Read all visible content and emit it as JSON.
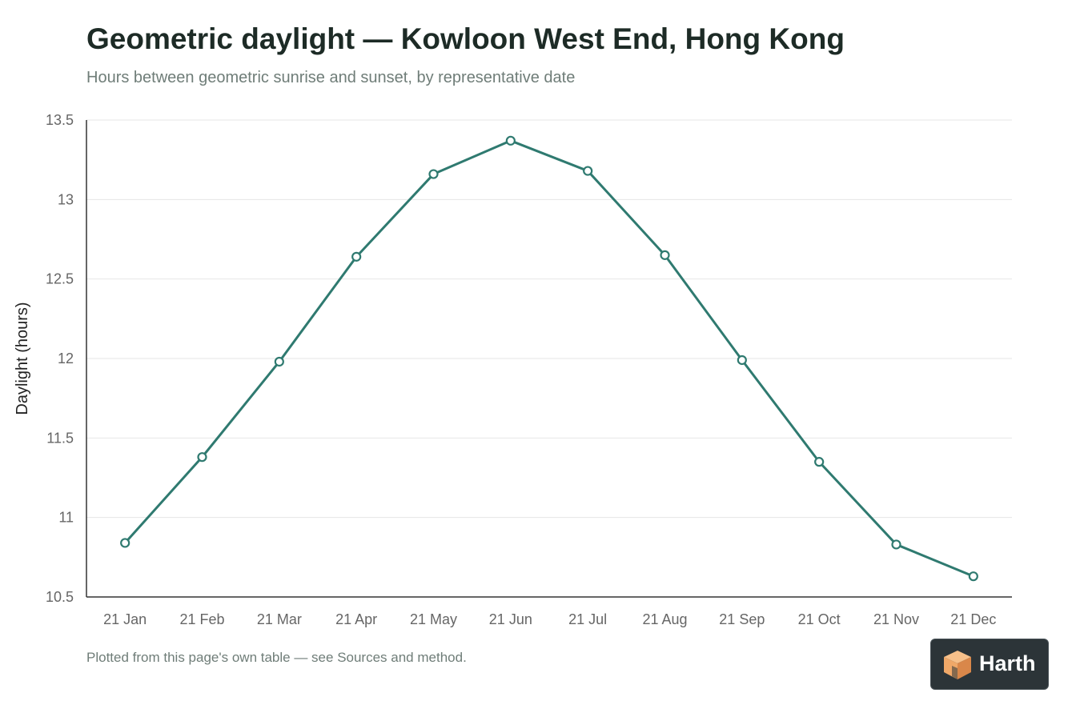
{
  "title": "Geometric daylight — Kowloon West End, Hong Kong",
  "subtitle": "Hours between geometric sunrise and sunset, by representative date",
  "footnote": "Plotted from this page's own table — see Sources and method.",
  "brand": {
    "name": "Harth",
    "logo_icon": "cube-logo-icon",
    "bg_color": "#2c3438",
    "accent": "#f0a868"
  },
  "colors": {
    "line": "#2f7a70",
    "grid": "#e6e6e6",
    "axis": "#333333",
    "tick_text": "#666666"
  },
  "chart_data": {
    "type": "line",
    "title": "Geometric daylight — Kowloon West End, Hong Kong",
    "subtitle": "Hours between geometric sunrise and sunset, by representative date",
    "xlabel": "",
    "ylabel": "Daylight (hours)",
    "categories": [
      "21 Jan",
      "21 Feb",
      "21 Mar",
      "21 Apr",
      "21 May",
      "21 Jun",
      "21 Jul",
      "21 Aug",
      "21 Sep",
      "21 Oct",
      "21 Nov",
      "21 Dec"
    ],
    "series": [
      {
        "values": [
          10.84,
          11.38,
          11.98,
          12.64,
          13.16,
          13.37,
          13.18,
          12.65,
          11.99,
          11.35,
          10.83,
          10.63
        ]
      }
    ],
    "ylim": [
      10.5,
      13.5
    ],
    "yticks": [
      "10.5",
      "11",
      "11.5",
      "12",
      "12.5",
      "13",
      "13.5"
    ],
    "grid": "horizontal",
    "markers": "hollow-circle"
  }
}
